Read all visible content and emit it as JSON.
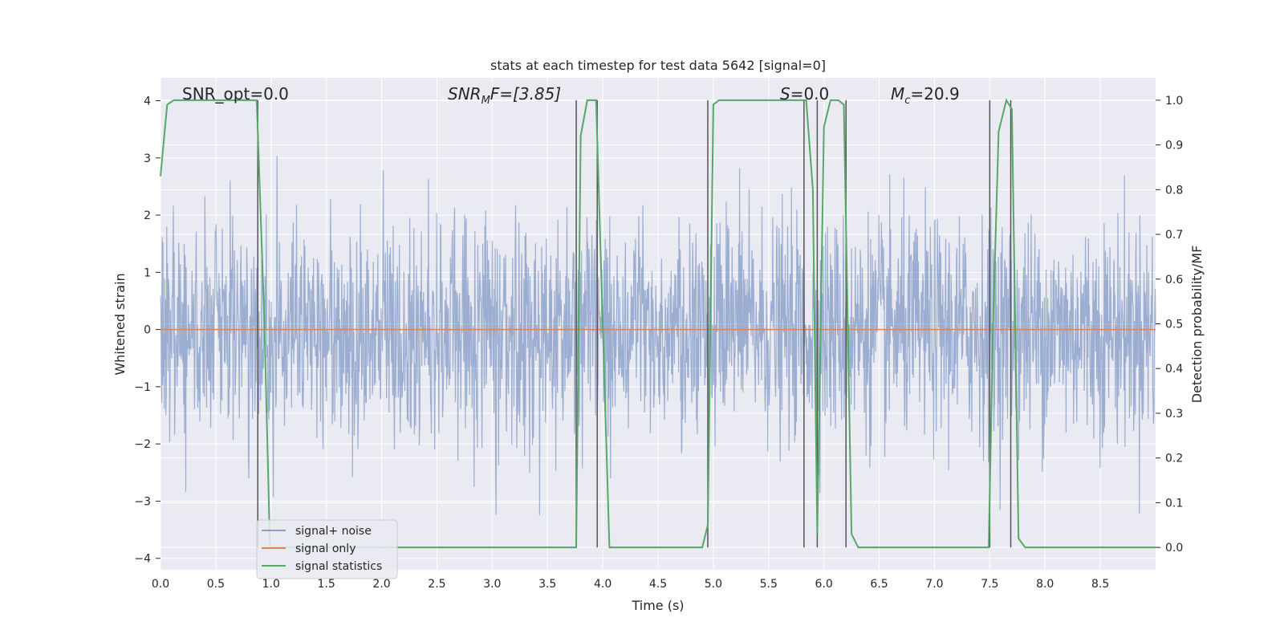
{
  "chart_data": {
    "type": "line",
    "title": "stats at each timestep for test data 5642 [signal=0]",
    "xlabel": "Time (s)",
    "ylabel": "Whitened strain",
    "ylabel_right": "Detection probability/MF",
    "xlim": [
      0,
      9.0
    ],
    "ylim": [
      -4.2,
      4.4
    ],
    "ylim_right": [
      -0.05,
      1.05
    ],
    "x_ticks": [
      "0.0",
      "0.5",
      "1.0",
      "1.5",
      "2.0",
      "2.5",
      "3.0",
      "3.5",
      "4.0",
      "4.5",
      "5.0",
      "5.5",
      "6.0",
      "6.5",
      "7.0",
      "7.5",
      "8.0",
      "8.5"
    ],
    "y_ticks": [
      "4",
      "3",
      "2",
      "1",
      "0",
      "−1",
      "−2",
      "−3",
      "−4"
    ],
    "y_right_ticks": [
      "1.0",
      "0.9",
      "0.8",
      "0.7",
      "0.6",
      "0.5",
      "0.4",
      "0.3",
      "0.2",
      "0.1",
      "0.0"
    ],
    "grid": true,
    "legend_position": "lower-left",
    "annotations": {
      "snr_opt": "SNR_opt=0.0",
      "snr_mf_base": "SNR",
      "snr_mf_sub": "M",
      "snr_mf_rest": "F=[3.85]",
      "s_label": "S",
      "s_rest": "=0.0",
      "mc_base": "M",
      "mc_sub": "c",
      "mc_rest": "=20.9"
    },
    "series": [
      {
        "name": "signal+ noise",
        "color": "#4c72b0",
        "noise_std": 0.95,
        "x_range": [
          0,
          9.0
        ]
      },
      {
        "name": "signal only",
        "color": "#dd8452",
        "values": [
          0,
          0
        ],
        "x": [
          0,
          9.0
        ]
      },
      {
        "name": "signal statistics",
        "color": "#55a868",
        "x": [
          0.0,
          0.06,
          0.12,
          0.2,
          0.4,
          0.6,
          0.8,
          0.87,
          0.94,
          0.99,
          1.05,
          1.5,
          2.0,
          2.5,
          3.0,
          3.5,
          3.7,
          3.76,
          3.8,
          3.86,
          3.94,
          4.0,
          4.06,
          4.5,
          4.9,
          4.95,
          5.0,
          5.05,
          5.5,
          5.84,
          5.9,
          5.94,
          6.0,
          6.06,
          6.13,
          6.18,
          6.25,
          6.31,
          6.5,
          7.0,
          7.49,
          7.53,
          7.58,
          7.65,
          7.7,
          7.76,
          7.82,
          8.0,
          8.5,
          9.0
        ],
        "values": [
          0.83,
          0.99,
          1.0,
          1.0,
          1.0,
          1.0,
          1.0,
          1.0,
          0.5,
          0.0,
          0.0,
          0.0,
          0.0,
          0.0,
          0.0,
          0.0,
          0.0,
          0.0,
          0.92,
          1.0,
          1.0,
          0.5,
          0.0,
          0.0,
          0.0,
          0.05,
          0.99,
          1.0,
          1.0,
          1.0,
          0.8,
          0.03,
          0.94,
          1.0,
          1.0,
          0.99,
          0.03,
          0.0,
          0.0,
          0.0,
          0.0,
          0.5,
          0.93,
          1.0,
          0.98,
          0.02,
          0.0,
          0.0,
          0.0,
          0.0
        ]
      },
      {
        "name": "detection markers",
        "color": "#555555",
        "x": [
          0.88,
          3.76,
          3.95,
          4.95,
          5.82,
          5.94,
          6.2,
          7.5,
          7.69
        ]
      }
    ]
  },
  "legend": {
    "items": [
      {
        "label": "signal+ noise",
        "color": "#4c72b0"
      },
      {
        "label": "signal only",
        "color": "#dd8452"
      },
      {
        "label": "signal statistics",
        "color": "#55a868"
      }
    ]
  }
}
